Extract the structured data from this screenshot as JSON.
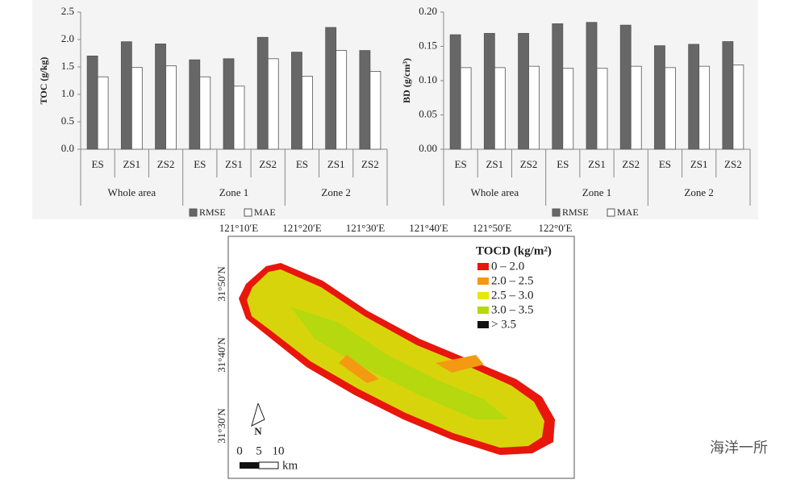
{
  "chart_data": [
    {
      "type": "bar",
      "y_label": "TOC (g/kg)",
      "categories": [
        "ES",
        "ZS1",
        "ZS2",
        "ES",
        "ZS1",
        "ZS2",
        "ES",
        "ZS1",
        "ZS2"
      ],
      "groups": [
        "Whole area",
        "Zone 1",
        "Zone 2"
      ],
      "series": [
        {
          "name": "RMSE",
          "color": "#676767",
          "values": [
            1.7,
            1.96,
            1.92,
            1.63,
            1.65,
            2.04,
            1.77,
            2.22,
            1.8
          ]
        },
        {
          "name": "MAE",
          "color": "#ffffff",
          "values": [
            1.32,
            1.49,
            1.52,
            1.32,
            1.15,
            1.65,
            1.33,
            1.8,
            1.42
          ]
        }
      ],
      "ylim": [
        0,
        2.5
      ],
      "yticks": [
        {
          "value": 0,
          "label": "0.0"
        },
        0.5,
        {
          "value": 1,
          "label": "1.0"
        },
        1.5,
        {
          "value": 2,
          "label": "2.0"
        },
        2.5
      ]
    },
    {
      "type": "bar",
      "y_label": "BD (g/cm³)",
      "categories": [
        "ES",
        "ZS1",
        "ZS2",
        "ES",
        "ZS1",
        "ZS2",
        "ES",
        "ZS1",
        "ZS2"
      ],
      "groups": [
        "Whole area",
        "Zone 1",
        "Zone 2"
      ],
      "series": [
        {
          "name": "RMSE",
          "color": "#676767",
          "values": [
            0.167,
            0.169,
            0.169,
            0.183,
            0.185,
            0.181,
            0.151,
            0.153,
            0.157
          ]
        },
        {
          "name": "MAE",
          "color": "#ffffff",
          "values": [
            0.119,
            0.119,
            0.121,
            0.118,
            0.118,
            0.121,
            0.119,
            0.121,
            0.123
          ]
        }
      ],
      "ylim": [
        0,
        0.2
      ],
      "yticks": [
        {
          "value": 0,
          "label": "0.00"
        },
        0.05,
        {
          "value": 0.1,
          "label": "0.10"
        },
        0.15,
        {
          "value": 0.2,
          "label": "0.20"
        }
      ]
    }
  ],
  "map": {
    "lon_labels": [
      "121°10′E",
      "121°20′E",
      "121°30′E",
      "121°40′E",
      "121°50′E",
      "122°0′E"
    ],
    "lat_labels": [
      "31°50′N",
      "31°40′N",
      "31°30′N"
    ],
    "legend_title": "TOCD (kg/m²)",
    "legend": [
      {
        "label": "0 – 2.0",
        "color": "#e8160c"
      },
      {
        "label": "2.0 – 2.5",
        "color": "#f39a12"
      },
      {
        "label": "2.5 – 3.0",
        "color": "#e9e60c"
      },
      {
        "label": "3.0 – 3.5",
        "color": "#b5d80e"
      },
      {
        "label": "> 3.5",
        "color": "#111111"
      }
    ],
    "north": "N",
    "scale_labels": [
      "0",
      "5",
      "10"
    ],
    "scale_unit": "km"
  },
  "watermark": "海洋一所"
}
